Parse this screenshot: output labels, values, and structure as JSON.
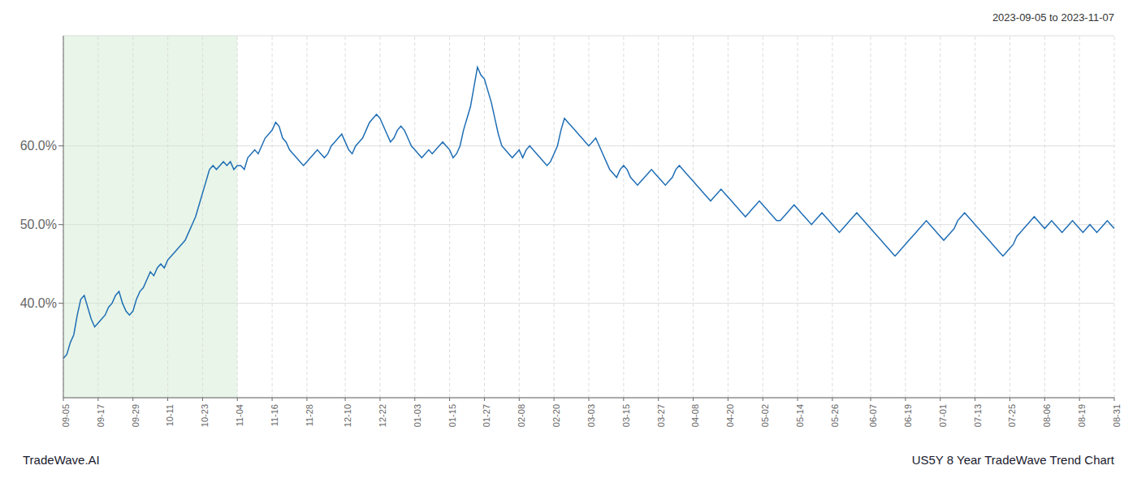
{
  "chart_data": {
    "type": "line",
    "title": "US5Y 8 Year TradeWave Trend Chart",
    "subtitle": "2023-09-05 to 2023-11-07",
    "annotations": [
      "TradeWave.AI"
    ],
    "categories": [
      "09-05",
      null,
      null,
      null,
      null,
      null,
      null,
      null,
      null,
      null,
      "09-17",
      null,
      null,
      null,
      null,
      null,
      null,
      null,
      null,
      null,
      "09-29",
      null,
      null,
      null,
      null,
      null,
      null,
      null,
      null,
      null,
      "10-11",
      null,
      null,
      null,
      null,
      null,
      null,
      null,
      null,
      null,
      "10-23",
      null,
      null,
      null,
      null,
      null,
      null,
      null,
      null,
      null,
      "11-04",
      null,
      null,
      null,
      null,
      null,
      null,
      null,
      null,
      null,
      "11-16",
      null,
      null,
      null,
      null,
      null,
      null,
      null,
      null,
      null,
      "11-28",
      null,
      null,
      null,
      null,
      null,
      null,
      null,
      null,
      null,
      null,
      "12-10",
      null,
      null,
      null,
      null,
      null,
      null,
      null,
      null,
      null,
      "12-22",
      null,
      null,
      null,
      null,
      null,
      null,
      null,
      null,
      null,
      "01-03",
      null,
      null,
      null,
      null,
      null,
      null,
      null,
      null,
      null,
      "01-15",
      null,
      null,
      null,
      null,
      null,
      null,
      null,
      null,
      null,
      "01-27",
      null,
      null,
      null,
      null,
      null,
      null,
      null,
      null,
      null,
      "02-08",
      null,
      null,
      null,
      null,
      null,
      null,
      null,
      null,
      null,
      "02-20",
      null,
      null,
      null,
      null,
      null,
      null,
      null,
      null,
      null,
      "03-03",
      null,
      null,
      null,
      null,
      null,
      null,
      null,
      null,
      null,
      "03-15",
      null,
      null,
      null,
      null,
      null,
      null,
      null,
      null,
      null,
      "03-27",
      null,
      null,
      null,
      null,
      null,
      null,
      null,
      null,
      null,
      "04-08",
      null,
      null,
      null,
      null,
      null,
      null,
      null,
      null,
      null,
      "04-20",
      null,
      null,
      null,
      null,
      null,
      null,
      null,
      null,
      null,
      "05-02",
      null,
      null,
      null,
      null,
      null,
      null,
      null,
      null,
      null,
      "05-14",
      null,
      null,
      null,
      null,
      null,
      null,
      null,
      null,
      null,
      "05-26",
      null,
      null,
      null,
      null,
      null,
      null,
      null,
      null,
      null,
      null,
      "06-07",
      null,
      null,
      null,
      null,
      null,
      null,
      null,
      null,
      null,
      "06-19",
      null,
      null,
      null,
      null,
      null,
      null,
      null,
      null,
      null,
      "07-01",
      null,
      null,
      null,
      null,
      null,
      null,
      null,
      null,
      null,
      "07-13",
      null,
      null,
      null,
      null,
      null,
      null,
      null,
      null,
      null,
      "07-25",
      null,
      null,
      null,
      null,
      null,
      null,
      null,
      null,
      null,
      "08-06",
      null,
      null,
      null,
      null,
      null,
      null,
      null,
      null,
      null,
      "08-19",
      null,
      null,
      null,
      null,
      null,
      null,
      null,
      null,
      null,
      "08-31"
    ],
    "values": [
      33.0,
      33.5,
      35.0,
      36.0,
      38.5,
      40.5,
      41.0,
      39.5,
      38.0,
      37.0,
      37.5,
      38.0,
      38.5,
      39.5,
      40.0,
      41.0,
      41.5,
      40.0,
      39.0,
      38.5,
      39.0,
      40.5,
      41.5,
      42.0,
      43.0,
      44.0,
      43.5,
      44.5,
      45.0,
      44.5,
      45.5,
      46.0,
      46.5,
      47.0,
      47.5,
      48.0,
      49.0,
      50.0,
      51.0,
      52.5,
      54.0,
      55.5,
      57.0,
      57.5,
      57.0,
      57.5,
      58.0,
      57.5,
      58.0,
      57.0,
      57.5,
      57.5,
      57.0,
      58.5,
      59.0,
      59.5,
      59.0,
      60.0,
      61.0,
      61.5,
      62.0,
      63.0,
      62.5,
      61.0,
      60.5,
      59.5,
      59.0,
      58.5,
      58.0,
      57.5,
      58.0,
      58.5,
      59.0,
      59.5,
      59.0,
      58.5,
      59.0,
      60.0,
      60.5,
      61.0,
      61.5,
      60.5,
      59.5,
      59.0,
      60.0,
      60.5,
      61.0,
      62.0,
      63.0,
      63.5,
      64.0,
      63.5,
      62.5,
      61.5,
      60.5,
      61.0,
      62.0,
      62.5,
      62.0,
      61.0,
      60.0,
      59.5,
      59.0,
      58.5,
      59.0,
      59.5,
      59.0,
      59.5,
      60.0,
      60.5,
      60.0,
      59.5,
      58.5,
      59.0,
      60.0,
      62.0,
      63.5,
      65.0,
      67.5,
      70.0,
      69.0,
      68.5,
      67.0,
      65.5,
      63.5,
      61.5,
      60.0,
      59.5,
      59.0,
      58.5,
      59.0,
      59.5,
      58.5,
      59.5,
      60.0,
      59.5,
      59.0,
      58.5,
      58.0,
      57.5,
      58.0,
      59.0,
      60.0,
      62.0,
      63.5,
      63.0,
      62.5,
      62.0,
      61.5,
      61.0,
      60.5,
      60.0,
      60.5,
      61.0,
      60.0,
      59.0,
      58.0,
      57.0,
      56.5,
      56.0,
      57.0,
      57.5,
      57.0,
      56.0,
      55.5,
      55.0,
      55.5,
      56.0,
      56.5,
      57.0,
      56.5,
      56.0,
      55.5,
      55.0,
      55.5,
      56.0,
      57.0,
      57.5,
      57.0,
      56.5,
      56.0,
      55.5,
      55.0,
      54.5,
      54.0,
      53.5,
      53.0,
      53.5,
      54.0,
      54.5,
      54.0,
      53.5,
      53.0,
      52.5,
      52.0,
      51.5,
      51.0,
      51.5,
      52.0,
      52.5,
      53.0,
      52.5,
      52.0,
      51.5,
      51.0,
      50.5,
      50.5,
      51.0,
      51.5,
      52.0,
      52.5,
      52.0,
      51.5,
      51.0,
      50.5,
      50.0,
      50.5,
      51.0,
      51.5,
      51.0,
      50.5,
      50.0,
      49.5,
      49.0,
      49.5,
      50.0,
      50.5,
      51.0,
      51.5,
      51.0,
      50.5,
      50.0,
      49.5,
      49.0,
      48.5,
      48.0,
      47.5,
      47.0,
      46.5,
      46.0,
      46.5,
      47.0,
      47.5,
      48.0,
      48.5,
      49.0,
      49.5,
      50.0,
      50.5,
      50.0,
      49.5,
      49.0,
      48.5,
      48.0,
      48.5,
      49.0,
      49.5,
      50.5,
      51.0,
      51.5,
      51.0,
      50.5,
      50.0,
      49.5,
      49.0,
      48.5,
      48.0,
      47.5,
      47.0,
      46.5,
      46.0,
      46.5,
      47.0,
      47.5,
      48.5,
      49.0,
      49.5,
      50.0,
      50.5,
      51.0,
      50.5,
      50.0,
      49.5,
      50.0,
      50.5,
      50.0,
      49.5,
      49.0,
      49.5,
      50.0,
      50.5,
      50.0,
      49.5,
      49.0,
      49.5,
      50.0,
      49.5,
      49.0,
      49.5,
      50.0,
      50.5,
      50.0,
      49.5
    ],
    "color": "#1f6eb5",
    "ylim": [
      28,
      74
    ],
    "yticks": [
      {
        "value": 40.0,
        "label": "40.0%"
      },
      {
        "value": 50.0,
        "label": "50.0%"
      },
      {
        "value": 60.0,
        "label": "60.0%"
      }
    ],
    "grid": true,
    "highlight": {
      "from": "09-05",
      "to": "11-04",
      "color": "#cce8cc"
    }
  }
}
